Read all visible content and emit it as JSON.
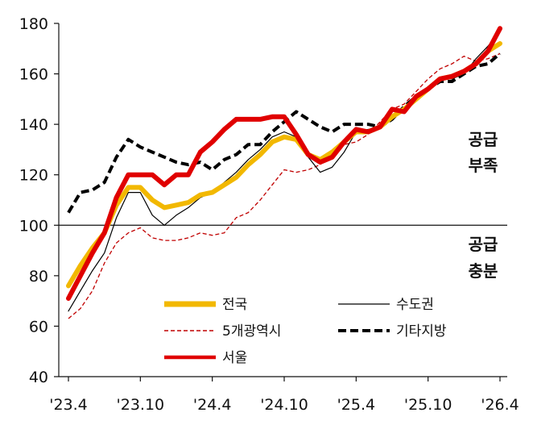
{
  "chart_data": {
    "type": "line",
    "title": "",
    "xlabel": "",
    "ylabel": "",
    "ylim": [
      40,
      180
    ],
    "yticks": [
      40,
      60,
      80,
      100,
      120,
      140,
      160,
      180
    ],
    "x_tick_labels": [
      "'23.4",
      "'23.10",
      "'24.4",
      "'24.10",
      "'25.4",
      "'25.10",
      "'26.4"
    ],
    "x_months": [
      "'23.4",
      "'23.5",
      "'23.6",
      "'23.7",
      "'23.8",
      "'23.9",
      "'23.10",
      "'23.11",
      "'23.12",
      "'24.1",
      "'24.2",
      "'24.3",
      "'24.4",
      "'24.5",
      "'24.6",
      "'24.7",
      "'24.8",
      "'24.9",
      "'24.10",
      "'24.11",
      "'24.12",
      "'25.1",
      "'25.2",
      "'25.3",
      "'25.4",
      "'25.5",
      "'25.6",
      "'25.7",
      "'25.8",
      "'25.9",
      "'25.10",
      "'25.11",
      "'25.12",
      "'26.1",
      "'26.2",
      "'26.3",
      "'26.4"
    ],
    "reference_line": 100,
    "grid": false,
    "legend_position": "bottom-center",
    "annotations": [
      {
        "lines": [
          "공급",
          "부족"
        ],
        "near_y": 130
      },
      {
        "lines": [
          "공급",
          "충분"
        ],
        "near_y": 88
      }
    ],
    "series": [
      {
        "name": "전국",
        "color": "#F2B800",
        "style": "thick",
        "values": [
          76,
          84,
          91,
          97,
          108,
          115,
          115,
          110,
          107,
          108,
          109,
          112,
          113,
          116,
          119,
          124,
          128,
          133,
          135,
          134,
          128,
          126,
          129,
          133,
          137,
          137,
          139,
          143,
          146,
          150,
          154,
          158,
          159,
          161,
          164,
          169,
          172
        ]
      },
      {
        "name": "수도권",
        "color": "#000000",
        "style": "thin",
        "values": [
          66,
          74,
          82,
          89,
          103,
          113,
          113,
          104,
          100,
          104,
          107,
          111,
          113,
          117,
          121,
          126,
          130,
          135,
          137,
          135,
          127,
          121,
          123,
          129,
          137,
          138,
          139,
          143,
          146,
          150,
          154,
          158,
          158,
          160,
          166,
          171,
          177
        ]
      },
      {
        "name": "5개광역시",
        "color": "#C00000",
        "style": "dashed-thin",
        "values": [
          63,
          67,
          74,
          85,
          93,
          97,
          99,
          95,
          94,
          94,
          95,
          97,
          96,
          97,
          103,
          105,
          110,
          116,
          122,
          121,
          122,
          124,
          129,
          132,
          133,
          136,
          141,
          146,
          148,
          153,
          158,
          162,
          164,
          167,
          165,
          166,
          168
        ]
      },
      {
        "name": "기타지방",
        "color": "#000000",
        "style": "dashed-thick",
        "values": [
          105,
          113,
          114,
          117,
          127,
          134,
          131,
          129,
          127,
          125,
          124,
          125,
          122,
          126,
          128,
          132,
          132,
          137,
          141,
          145,
          142,
          139,
          137,
          140,
          140,
          140,
          139,
          142,
          147,
          151,
          154,
          157,
          157,
          160,
          163,
          164,
          168
        ]
      },
      {
        "name": "서울",
        "color": "#E00000",
        "style": "thick",
        "values": [
          71,
          80,
          89,
          97,
          111,
          120,
          120,
          120,
          116,
          120,
          120,
          129,
          133,
          138,
          142,
          142,
          142,
          143,
          143,
          136,
          128,
          125,
          127,
          133,
          138,
          137,
          139,
          146,
          145,
          151,
          154,
          158,
          159,
          161,
          164,
          169,
          178
        ]
      }
    ]
  }
}
